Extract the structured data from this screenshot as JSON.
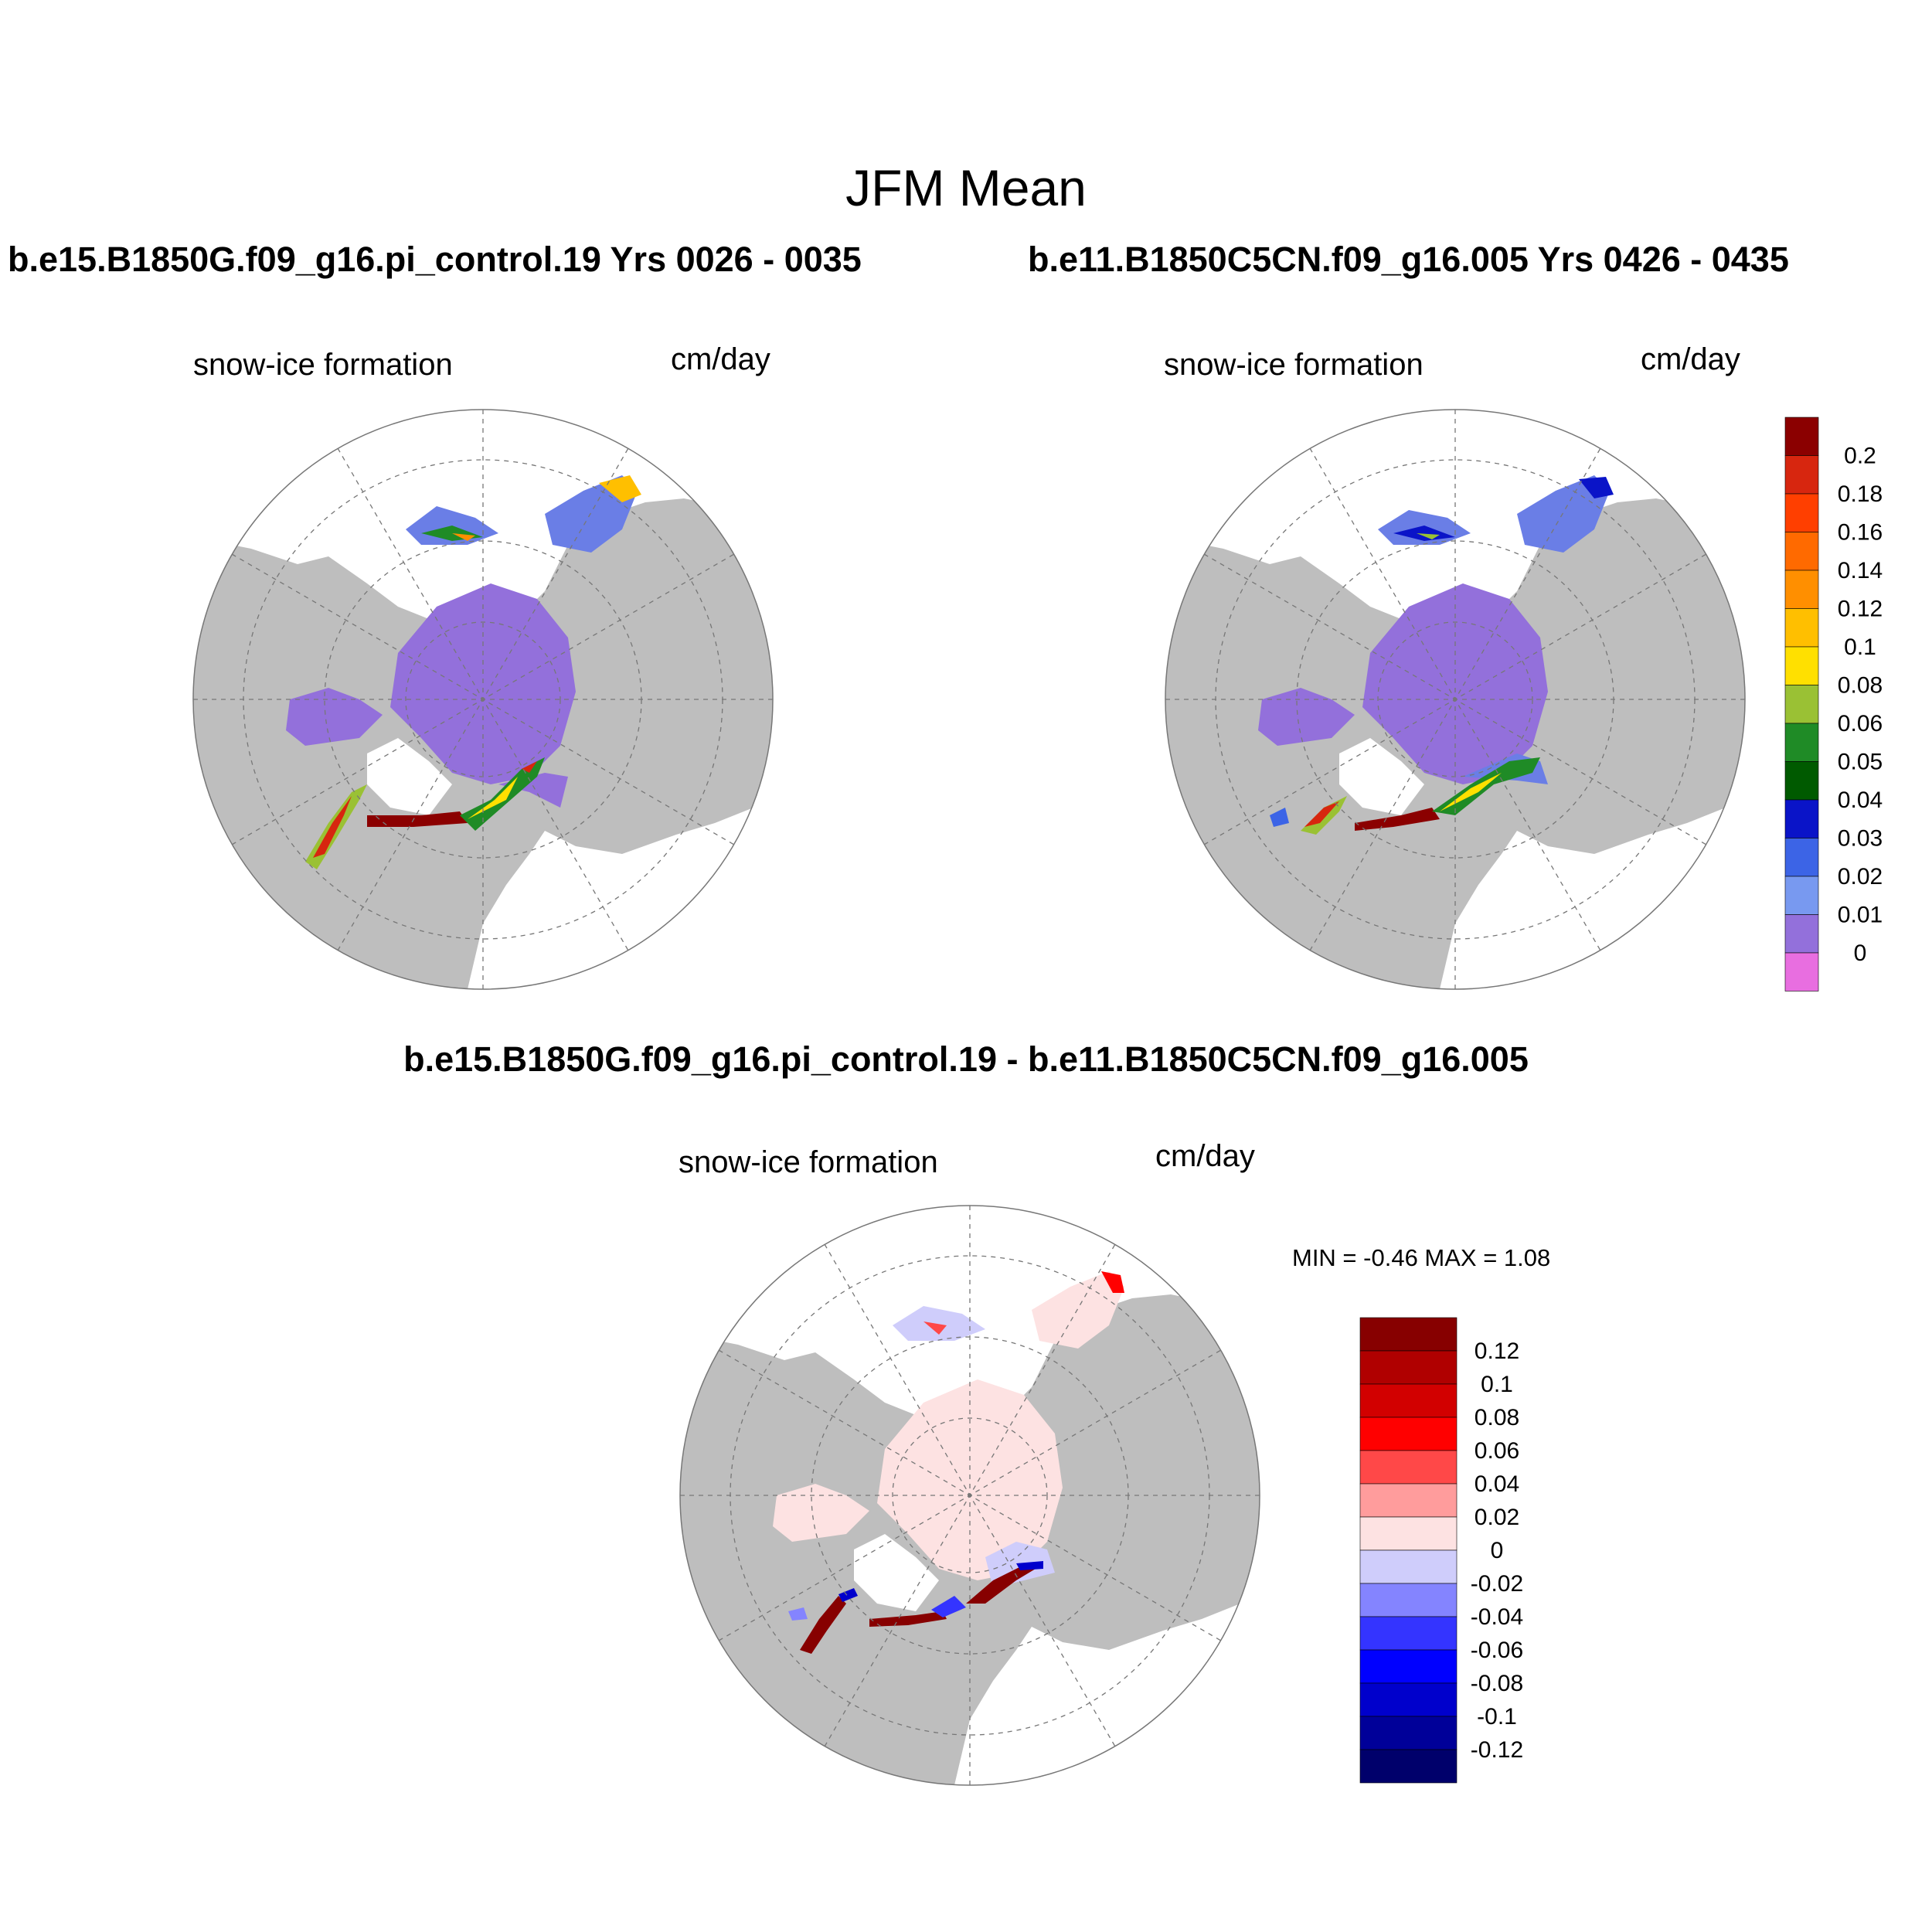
{
  "page": {
    "title": "JFM Mean",
    "difference_title": "b.e15.B1850G.f09_g16.pi_control.19 - b.e11.B1850C5CN.f09_g16.005"
  },
  "panels": [
    {
      "id": "case1",
      "title": "b.e15.B1850G.f09_g16.pi_control.19  Yrs 0026 - 0035",
      "variable": "snow-ice formation",
      "units": "cm/day"
    },
    {
      "id": "case2",
      "title": "b.e11.B1850C5CN.f09_g16.005  Yrs 0426 - 0435",
      "variable": "snow-ice formation",
      "units": "cm/day"
    },
    {
      "id": "difference",
      "variable": "snow-ice formation",
      "units": "cm/day",
      "minmax": "MIN =  -0.46 MAX =   1.08"
    }
  ],
  "colorbars": {
    "absolute": {
      "labels": [
        "0.2",
        "0.18",
        "0.16",
        "0.14",
        "0.12",
        "0.1",
        "0.08",
        "0.06",
        "0.05",
        "0.04",
        "0.03",
        "0.02",
        "0.01",
        "0"
      ],
      "colors": [
        "#8b0000",
        "#d7260f",
        "#ff3f00",
        "#ff6a00",
        "#ff8f00",
        "#ffbf00",
        "#ffe000",
        "#9ac134",
        "#1f8b26",
        "#005a00",
        "#0a14c8",
        "#3c64e6",
        "#7899f0",
        "#9370db",
        "#e86ee0"
      ]
    },
    "difference": {
      "labels": [
        "0.12",
        "0.1",
        "0.08",
        "0.06",
        "0.04",
        "0.02",
        "0",
        "-0.02",
        "-0.04",
        "-0.06",
        "-0.08",
        "-0.1",
        "-0.12"
      ],
      "colors": [
        "#870000",
        "#b00000",
        "#d20000",
        "#ff0000",
        "#ff4848",
        "#ff9c9c",
        "#fde2e2",
        "#cfcdfb",
        "#8484ff",
        "#3434ff",
        "#0000ff",
        "#0000cc",
        "#000099",
        "#00006b"
      ]
    }
  },
  "map": {
    "projection": "north polar stereographic",
    "land_color": "#bebebe",
    "ocean_color": "#ffffff",
    "graticule": "dashed"
  }
}
